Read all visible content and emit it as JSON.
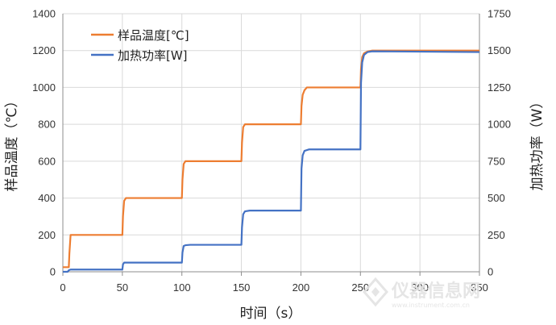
{
  "chart_data": {
    "type": "line",
    "xlabel": "时间（s）",
    "ylabel_left": "样品温度（℃）",
    "ylabel_right": "加热功率（W）",
    "xlim": [
      0,
      350
    ],
    "ylim_left": [
      0,
      1400
    ],
    "ylim_right": [
      0,
      1750
    ],
    "xticks": [
      0,
      50,
      100,
      150,
      200,
      250,
      300,
      350
    ],
    "yticks_left": [
      0,
      200,
      400,
      600,
      800,
      1000,
      1200,
      1400
    ],
    "yticks_right": [
      0,
      250,
      500,
      750,
      1000,
      1250,
      1500,
      1750
    ],
    "grid": true,
    "legend_position": "top-left",
    "series": [
      {
        "name": "样品温度[℃]",
        "axis": "left",
        "color": "#ED7D31",
        "x": [
          0,
          5,
          5.5,
          6.5,
          50,
          50.5,
          51.5,
          53,
          100,
          100.5,
          101.5,
          103,
          150,
          150.5,
          151.5,
          153,
          200,
          200.5,
          201.5,
          203,
          205,
          250,
          250.5,
          251.5,
          253,
          256,
          260,
          350
        ],
        "y": [
          25,
          25,
          100,
          200,
          200,
          300,
          385,
          400,
          400,
          500,
          585,
          600,
          600,
          700,
          785,
          800,
          800,
          900,
          960,
          985,
          1000,
          1000,
          1100,
          1165,
          1185,
          1195,
          1200,
          1200
        ]
      },
      {
        "name": "加热功率[W]",
        "axis": "right",
        "color": "#4472C4",
        "x": [
          0,
          4,
          5,
          6.5,
          50,
          50.5,
          51.5,
          53,
          100,
          100.5,
          101.5,
          103,
          107,
          150,
          150.5,
          151.5,
          153,
          157,
          200,
          200.5,
          201.5,
          203,
          207,
          250,
          250.5,
          251.5,
          253,
          256,
          260,
          350
        ],
        "y": [
          0,
          0,
          10,
          15,
          15,
          50,
          62,
          62,
          62,
          130,
          175,
          180,
          183,
          183,
          300,
          390,
          410,
          415,
          415,
          700,
          790,
          820,
          830,
          830,
          1280,
          1420,
          1470,
          1490,
          1495,
          1490
        ]
      }
    ]
  },
  "watermark": {
    "brand": "仪器信息网",
    "url": "www.instrument.com.cn"
  }
}
